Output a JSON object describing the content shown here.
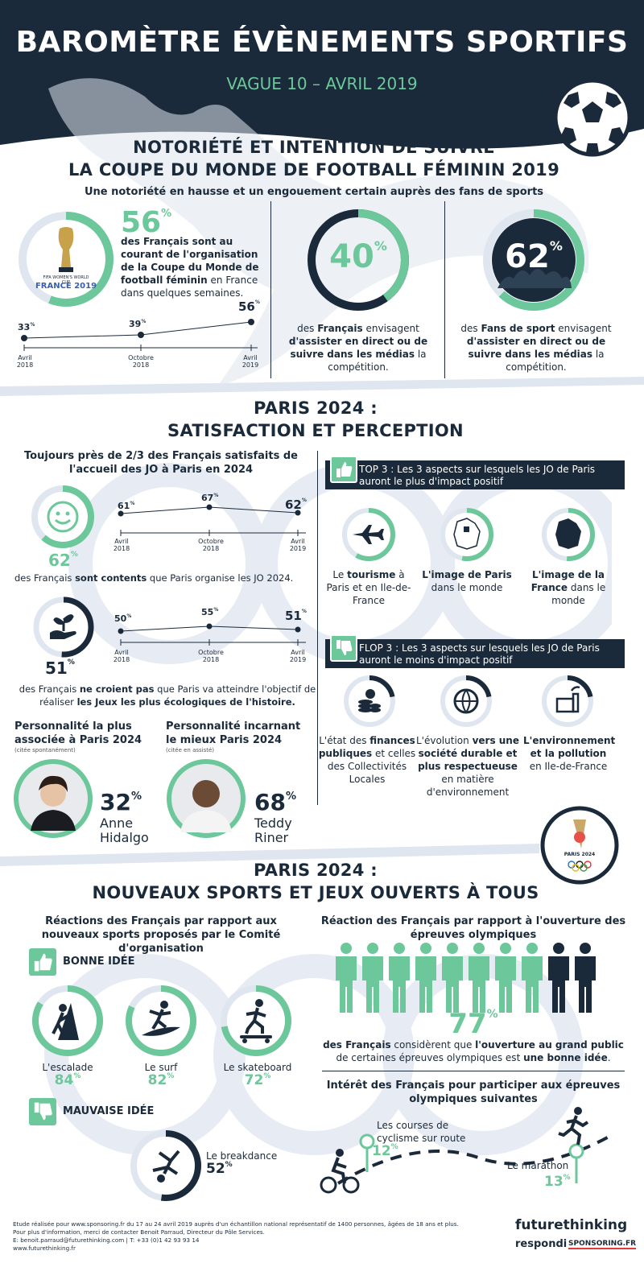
{
  "header": {
    "title": "BAROMÈTRE ÉVÈNEMENTS SPORTIFS",
    "subtitle": "VAGUE 10 – AVRIL 2019"
  },
  "colors": {
    "navy": "#1b2a3a",
    "green": "#6cc79a",
    "light": "#dfe6ef"
  },
  "s1": {
    "title_l1": "NOTORIÉTÉ ET INTENTION DE SUIVRE",
    "title_l2": "LA COUPE DU MONDE DE FOOTBALL FÉMININ 2019",
    "lead": "Une notoriété en hausse et un engouement certain auprès des fans de sports",
    "logo_text1": "FIFA WOMEN'S WORLD CUP",
    "logo_text2": "FRANCE 2019",
    "notoriety_value": "56",
    "notoriety_text_bold": "des Français sont au courant de l'organisation de la Coupe du Monde de football féminin",
    "notoriety_text": " en France dans quelques semaines.",
    "trend": [
      {
        "value": "33",
        "label_l1": "Avril",
        "label_l2": "2018"
      },
      {
        "value": "39",
        "label_l1": "Octobre",
        "label_l2": "2018"
      },
      {
        "value": "56",
        "label_l1": "Avril",
        "label_l2": "2019"
      }
    ],
    "c1_value": "40",
    "c1_pre": "des ",
    "c1_bold1": "Français",
    "c1_mid": " envisagent ",
    "c1_bold2": "d'assister en direct ou de suivre dans les médias",
    "c1_post": " la compétition.",
    "c2_value": "62",
    "c2_pre": "des ",
    "c2_bold1": "Fans de sport",
    "c2_mid": " envisagent ",
    "c2_bold2": "d'assister en direct ou de suivre dans les médias",
    "c2_post": " la compétition."
  },
  "s2": {
    "title_l1": "PARIS 2024 :",
    "title_l2": "SATISFACTION ET PERCEPTION",
    "lead": "Toujours près de 2/3 des Français satisfaits de l'accueil des JO à Paris en 2024",
    "sat_value": "62",
    "sat_trend": [
      {
        "value": "61",
        "label_l1": "Avril",
        "label_l2": "2018"
      },
      {
        "value": "67",
        "label_l1": "Octobre",
        "label_l2": "2018"
      },
      {
        "value": "62",
        "label_l1": "Avril",
        "label_l2": "2019"
      }
    ],
    "sat_text_pre": "des Français ",
    "sat_text_bold": "sont contents",
    "sat_text_post": " que Paris organise les JO 2024.",
    "eco_value": "51",
    "eco_trend": [
      {
        "value": "50",
        "label_l1": "Avril",
        "label_l2": "2018"
      },
      {
        "value": "55",
        "label_l1": "Octobre",
        "label_l2": "2018"
      },
      {
        "value": "51",
        "label_l1": "Avril",
        "label_l2": "2019"
      }
    ],
    "eco_text_pre": "des Français ",
    "eco_text_bold1": "ne croient pas",
    "eco_text_mid": " que Paris va atteindre l'objectif de réaliser ",
    "eco_text_bold2": "les Jeux les plus écologiques de l'histoire.",
    "pers1_title": "Personnalité la plus associée à Paris 2024",
    "pers1_note": "(citée spontanément)",
    "pers1_value": "32",
    "pers1_name_l1": "Anne",
    "pers1_name_l2": "Hidalgo",
    "pers2_title": "Personnalité incarnant le mieux Paris 2024",
    "pers2_note": "(citée en assisté)",
    "pers2_value": "68",
    "pers2_name_l1": "Teddy",
    "pers2_name_l2": "Riner",
    "top3_banner": "TOP 3 : Les 3 aspects sur lesquels les JO de Paris auront le plus d'impact positif",
    "top3": [
      {
        "icon": "airplane-icon",
        "pre": "Le ",
        "bold": "tourisme",
        "post": " à Paris et en Ile-de-France"
      },
      {
        "icon": "paris-map-icon",
        "pre": "",
        "bold": "L'image de Paris",
        "post": " dans le monde"
      },
      {
        "icon": "france-map-icon",
        "pre": "",
        "bold": "L'image de la France",
        "post": " dans le monde"
      }
    ],
    "flop3_banner": "FLOP 3 : Les 3 aspects sur lesquels les JO de Paris auront le moins d'impact positif",
    "flop3": [
      {
        "icon": "coins-icon",
        "pre": "L'état des ",
        "bold": "finances publiques",
        "post": " et celles des Collectivités Locales"
      },
      {
        "icon": "globe-icon",
        "pre": "L'évolution ",
        "bold": "vers une société durable et plus respectueuse",
        "post": " en matière d'environnement"
      },
      {
        "icon": "factory-icon",
        "pre": "",
        "bold": "L'environnement et la pollution",
        "post": " en Ile-de-France"
      }
    ],
    "paris_logo_text": "PARIS 2024"
  },
  "s3": {
    "title_l1": "PARIS 2024 :",
    "title_l2": "NOUVEAUX SPORTS ET JEUX OUVERTS À TOUS",
    "left_lead": "Réactions des Français par rapport aux nouveaux sports proposés par le Comité d'organisation",
    "good_label": "BONNE IDÉE",
    "sports": [
      {
        "name": "L'escalade",
        "value": "84",
        "icon": "climbing-icon"
      },
      {
        "name": "Le surf",
        "value": "82",
        "icon": "surf-icon"
      },
      {
        "name": "Le skateboard",
        "value": "72",
        "icon": "skateboard-icon"
      }
    ],
    "bad_label": "MAUVAISE IDÉE",
    "breakdance_name": "Le breakdance",
    "breakdance_value": "52",
    "right_lead": "Réaction des Français par rapport à l'ouverture des épreuves olympiques",
    "open_value": "77",
    "open_bold1": "des Français",
    "open_mid": " considèrent que ",
    "open_bold2": "l'ouverture au grand public",
    "open_mid2": " de certaines épreuves olympiques est ",
    "open_bold3": "une bonne idée",
    "open_post": ".",
    "interest_lead": "Intérêt des Français pour participer aux épreuves olympiques suivantes",
    "cycling_l1": "Les courses de",
    "cycling_l2": "cyclisme sur route",
    "cycling_value": "12",
    "marathon_label": "Le marathon",
    "marathon_value": "13"
  },
  "footer": {
    "line1": "Etude réalisée pour www.sponsoring.fr du 17 au 24 avril 2019 auprès d'un échantillon national représentatif de 1400 personnes, âgées de 18 ans et plus.",
    "line2": "Pour plus d'information, merci de contacter Benoit Parraud, Directeur du Pôle Services.",
    "line3": "E: benoit.parraud@futurethinking.com | T: +33 (0)1 42 93 93 14",
    "line4": "www.futurethinking.fr",
    "brand1": "futurethinking",
    "brand2": "respondi",
    "brand3": "SPONSORING.FR"
  }
}
